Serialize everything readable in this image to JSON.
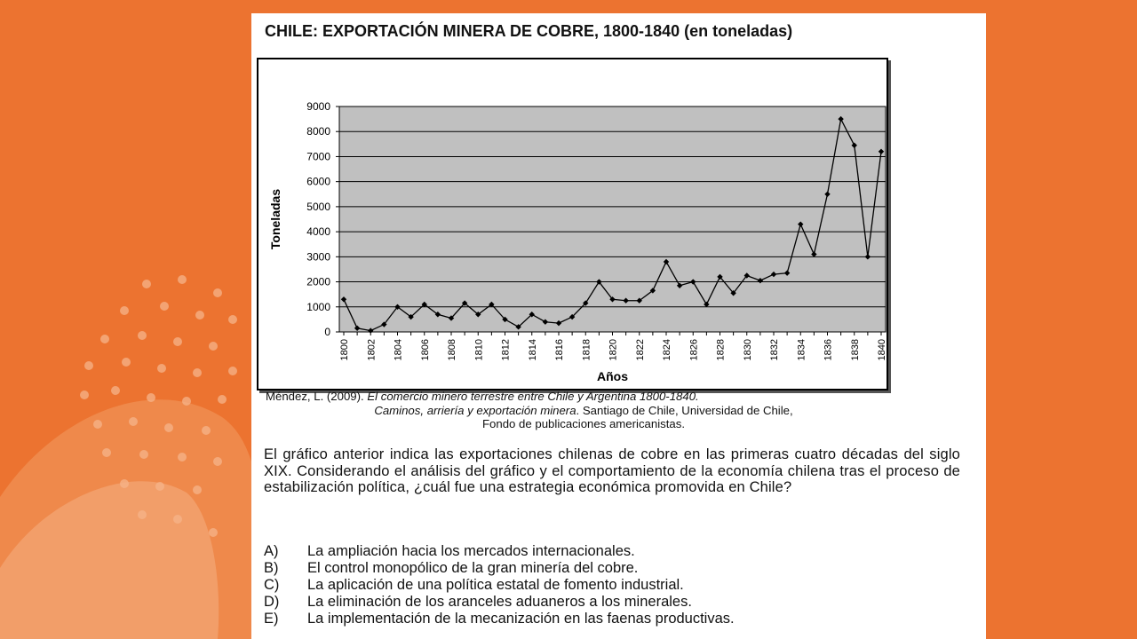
{
  "document": {
    "title": "CHILE: EXPORTACIÓN MINERA DE COBRE, 1800-1840 (en toneladas)",
    "citation": {
      "author_year": "Méndez, L. (2009). ",
      "book_title_1": "El comercio minero terrestre entre Chile y Argentina 1800-1840.",
      "book_title_2": "Caminos, arriería y exportación minera",
      "rest_line_2": ". Santiago de Chile, Universidad de Chile,",
      "line_3": "Fondo de publicaciones americanistas."
    },
    "question": "El gráfico anterior indica las exportaciones chilenas de cobre en las primeras cuatro décadas del siglo XIX. Considerando el análisis del gráfico y el comportamiento de la economía chilena tras el proceso de estabilización política, ¿cuál fue una estrategia económica promovida en Chile?",
    "options": [
      {
        "letter": "A)",
        "text": "La ampliación hacia los mercados internacionales."
      },
      {
        "letter": "B)",
        "text": "El control monopólico de la gran minería del cobre."
      },
      {
        "letter": "C)",
        "text": "La aplicación de una política estatal de fomento industrial."
      },
      {
        "letter": "D)",
        "text": "La eliminación de los aranceles aduaneros a los minerales."
      },
      {
        "letter": "E)",
        "text": "La implementación de la mecanización en las faenas productivas."
      }
    ]
  },
  "colors": {
    "background": "#ec7330",
    "plot_area": "#c0c0c0",
    "line": "#000000"
  },
  "chart_data": {
    "type": "line",
    "title": "",
    "xlabel": "Años",
    "ylabel": "Toneladas",
    "ylim": [
      0,
      9000
    ],
    "yticks": [
      "0",
      "1000",
      "2000",
      "3000",
      "4000",
      "5000",
      "6000",
      "7000",
      "8000",
      "9000"
    ],
    "xticks": [
      "1800",
      "1802",
      "1804",
      "1806",
      "1808",
      "1810",
      "1812",
      "1814",
      "1816",
      "1818",
      "1820",
      "1822",
      "1824",
      "1826",
      "1828",
      "1830",
      "1832",
      "1834",
      "1836",
      "1838",
      "1840"
    ],
    "grid": true,
    "marker": "diamond",
    "x": [
      1800,
      1801,
      1802,
      1803,
      1804,
      1805,
      1806,
      1807,
      1808,
      1809,
      1810,
      1811,
      1812,
      1813,
      1814,
      1815,
      1816,
      1817,
      1818,
      1819,
      1820,
      1821,
      1822,
      1823,
      1824,
      1825,
      1826,
      1827,
      1828,
      1829,
      1830,
      1831,
      1832,
      1833,
      1834,
      1835,
      1836,
      1837,
      1838,
      1839,
      1840
    ],
    "values": [
      1300,
      150,
      50,
      300,
      1000,
      600,
      1100,
      700,
      550,
      1150,
      700,
      1100,
      500,
      200,
      700,
      400,
      350,
      600,
      1150,
      2000,
      1300,
      1250,
      1250,
      1650,
      2800,
      1850,
      2000,
      1100,
      2200,
      1550,
      2250,
      2050,
      2300,
      2350,
      4300,
      3100,
      5500,
      8500,
      7450,
      3000,
      7200
    ]
  }
}
